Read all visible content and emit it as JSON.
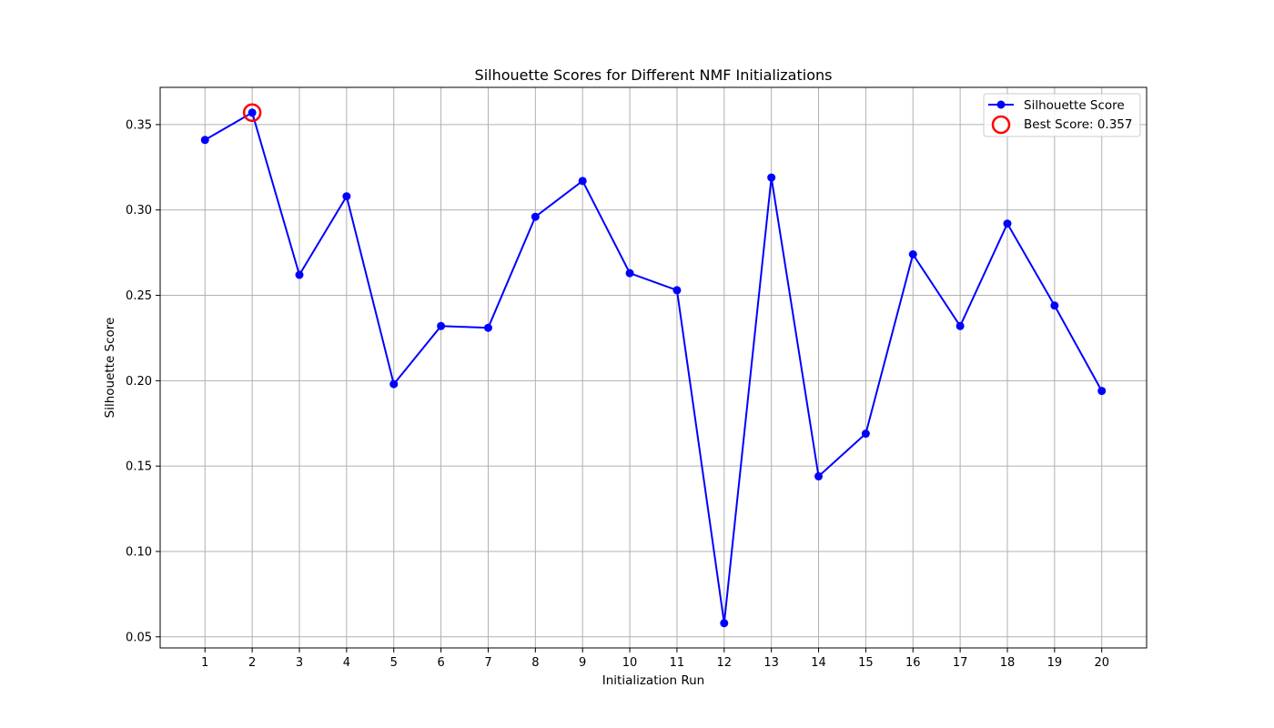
{
  "chart_data": {
    "type": "line",
    "title": "Silhouette Scores for Different NMF Initializations",
    "xlabel": "Initialization Run",
    "ylabel": "Silhouette Score",
    "x": [
      1,
      2,
      3,
      4,
      5,
      6,
      7,
      8,
      9,
      10,
      11,
      12,
      13,
      14,
      15,
      16,
      17,
      18,
      19,
      20
    ],
    "xlim": [
      0.05,
      20.95
    ],
    "ylim": [
      0.0435,
      0.3718
    ],
    "x_ticks": [
      1,
      2,
      3,
      4,
      5,
      6,
      7,
      8,
      9,
      10,
      11,
      12,
      13,
      14,
      15,
      16,
      17,
      18,
      19,
      20
    ],
    "y_ticks": [
      "0.05",
      "0.10",
      "0.15",
      "0.20",
      "0.25",
      "0.30",
      "0.35"
    ],
    "grid": true,
    "legend_position": "top-right",
    "series": [
      {
        "name": "Silhouette Score",
        "color": "#0000ff",
        "marker": "circle",
        "values": [
          0.341,
          0.357,
          0.262,
          0.308,
          0.198,
          0.232,
          0.231,
          0.296,
          0.317,
          0.263,
          0.253,
          0.058,
          0.319,
          0.144,
          0.169,
          0.274,
          0.232,
          0.292,
          0.244,
          0.194
        ]
      }
    ],
    "highlight": {
      "name": "Best Score: 0.357",
      "x": 2,
      "y": 0.357,
      "color": "#ff0000",
      "marker": "open-circle"
    }
  }
}
